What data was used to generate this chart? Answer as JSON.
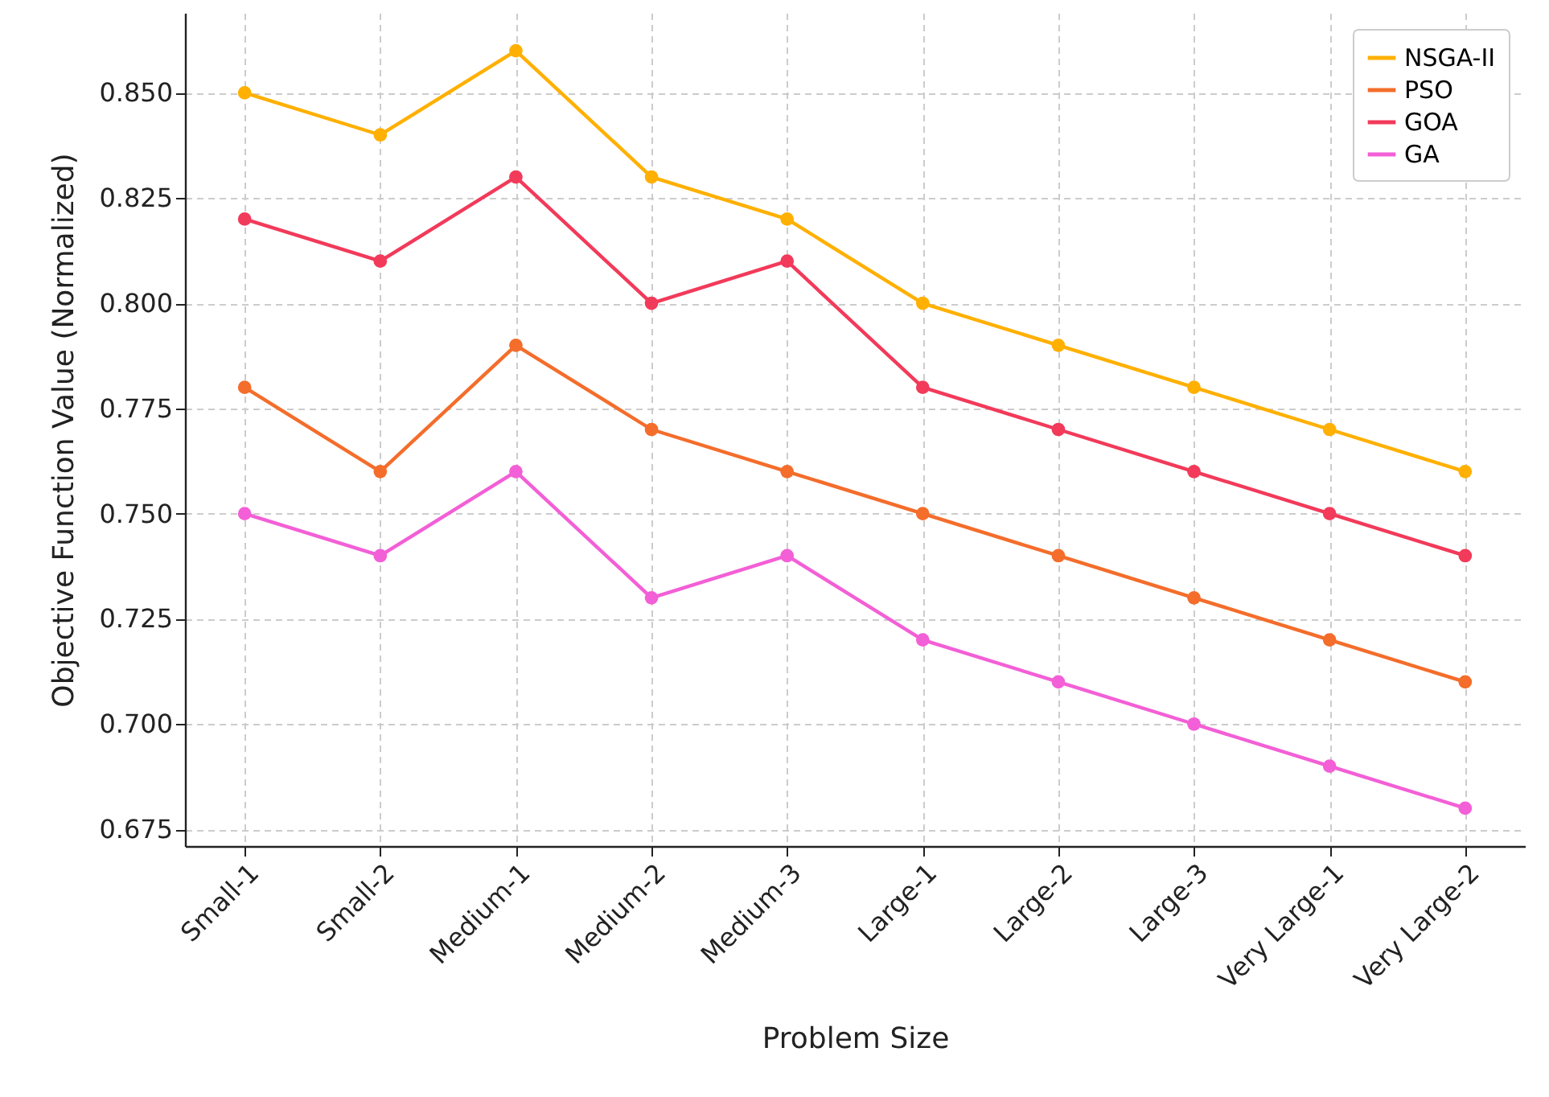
{
  "chart_data": {
    "type": "line",
    "xlabel": "Problem Size",
    "ylabel": "Objective Function Value (Normalized)",
    "categories": [
      "Small-1",
      "Small-2",
      "Medium-1",
      "Medium-2",
      "Medium-3",
      "Large-1",
      "Large-2",
      "Large-3",
      "Very Large-1",
      "Very Large-2"
    ],
    "series": [
      {
        "name": "NSGA-II",
        "color": "#ffb000",
        "values": [
          0.85,
          0.84,
          0.86,
          0.83,
          0.82,
          0.8,
          0.79,
          0.78,
          0.77,
          0.76
        ]
      },
      {
        "name": "PSO",
        "color": "#f46d2b",
        "values": [
          0.78,
          0.76,
          0.79,
          0.77,
          0.76,
          0.75,
          0.74,
          0.73,
          0.72,
          0.71
        ]
      },
      {
        "name": "GOA",
        "color": "#f23a5a",
        "values": [
          0.82,
          0.81,
          0.83,
          0.8,
          0.81,
          0.78,
          0.77,
          0.76,
          0.75,
          0.74
        ]
      },
      {
        "name": "GA",
        "color": "#f35fd6",
        "values": [
          0.75,
          0.74,
          0.76,
          0.73,
          0.74,
          0.72,
          0.71,
          0.7,
          0.69,
          0.68
        ]
      }
    ],
    "ylim": [
      0.671,
      0.869
    ],
    "yticks": [
      {
        "value": 0.675,
        "label": "0.675"
      },
      {
        "value": 0.7,
        "label": "0.700"
      },
      {
        "value": 0.725,
        "label": "0.725"
      },
      {
        "value": 0.75,
        "label": "0.750"
      },
      {
        "value": 0.775,
        "label": "0.775"
      },
      {
        "value": 0.8,
        "label": "0.800"
      },
      {
        "value": 0.825,
        "label": "0.825"
      },
      {
        "value": 0.85,
        "label": "0.850"
      }
    ],
    "grid": true,
    "legend": "top right",
    "marker": "circle",
    "line_style": "solid"
  }
}
